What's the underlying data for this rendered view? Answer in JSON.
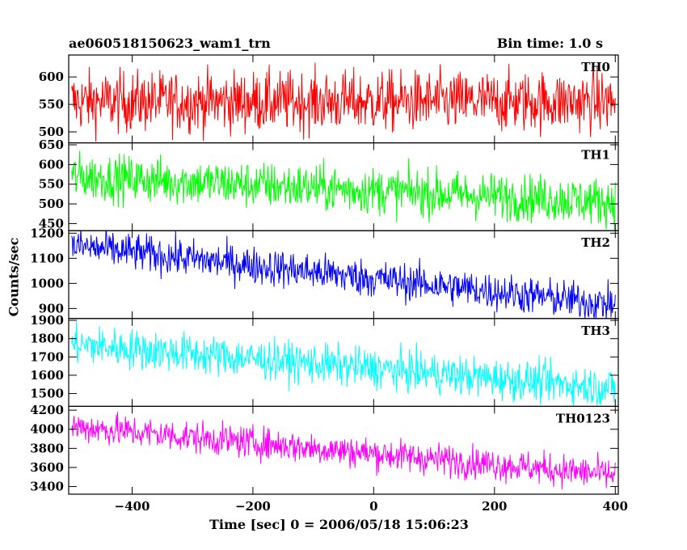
{
  "header": {
    "title": "ae060518150623_wam1_trn",
    "bin_time": "Bin time: 1.0 s"
  },
  "axes": {
    "xlabel": "Time [sec] 0 = 2006/05/18 15:06:23",
    "ylabel": "Counts/sec"
  },
  "chart_data": {
    "type": "line",
    "title": "ae060518150623_wam1_trn",
    "xlabel": "Time [sec] 0 = 2006/05/18 15:06:23",
    "ylabel": "Counts/sec",
    "xlim": [
      -505,
      405
    ],
    "x_ticks": [
      -400,
      -200,
      0,
      200,
      400
    ],
    "x_step": 1.0,
    "grid": false,
    "panels": [
      {
        "name": "TH0",
        "color": "#ff0000",
        "ylim": [
          480,
          640
        ],
        "y_ticks": [
          500,
          550,
          600
        ],
        "trend_x": [
          -500,
          400
        ],
        "trend_y": [
          555,
          555
        ],
        "noise": 28
      },
      {
        "name": "TH1",
        "color": "#00ff00",
        "ylim": [
          432,
          655
        ],
        "y_ticks": [
          450,
          500,
          550,
          600,
          650
        ],
        "trend_x": [
          -500,
          400
        ],
        "trend_y": [
          570,
          505
        ],
        "noise": 30
      },
      {
        "name": "TH2",
        "color": "#0000ff",
        "ylim": [
          860,
          1210
        ],
        "y_ticks": [
          900,
          1000,
          1100,
          1200
        ],
        "trend_x": [
          -500,
          400
        ],
        "trend_y": [
          1150,
          915
        ],
        "noise": 38
      },
      {
        "name": "TH3",
        "color": "#00ffff",
        "ylim": [
          1430,
          1910
        ],
        "y_ticks": [
          1500,
          1600,
          1700,
          1800,
          1900
        ],
        "trend_x": [
          -500,
          400
        ],
        "trend_y": [
          1770,
          1530
        ],
        "noise": 55
      },
      {
        "name": "TH0123",
        "color": "#ff00ff",
        "ylim": [
          3320,
          4240
        ],
        "y_ticks": [
          3400,
          3600,
          3800,
          4000,
          4200
        ],
        "trend_x": [
          -500,
          400
        ],
        "trend_y": [
          4030,
          3520
        ],
        "noise": 85
      }
    ]
  }
}
